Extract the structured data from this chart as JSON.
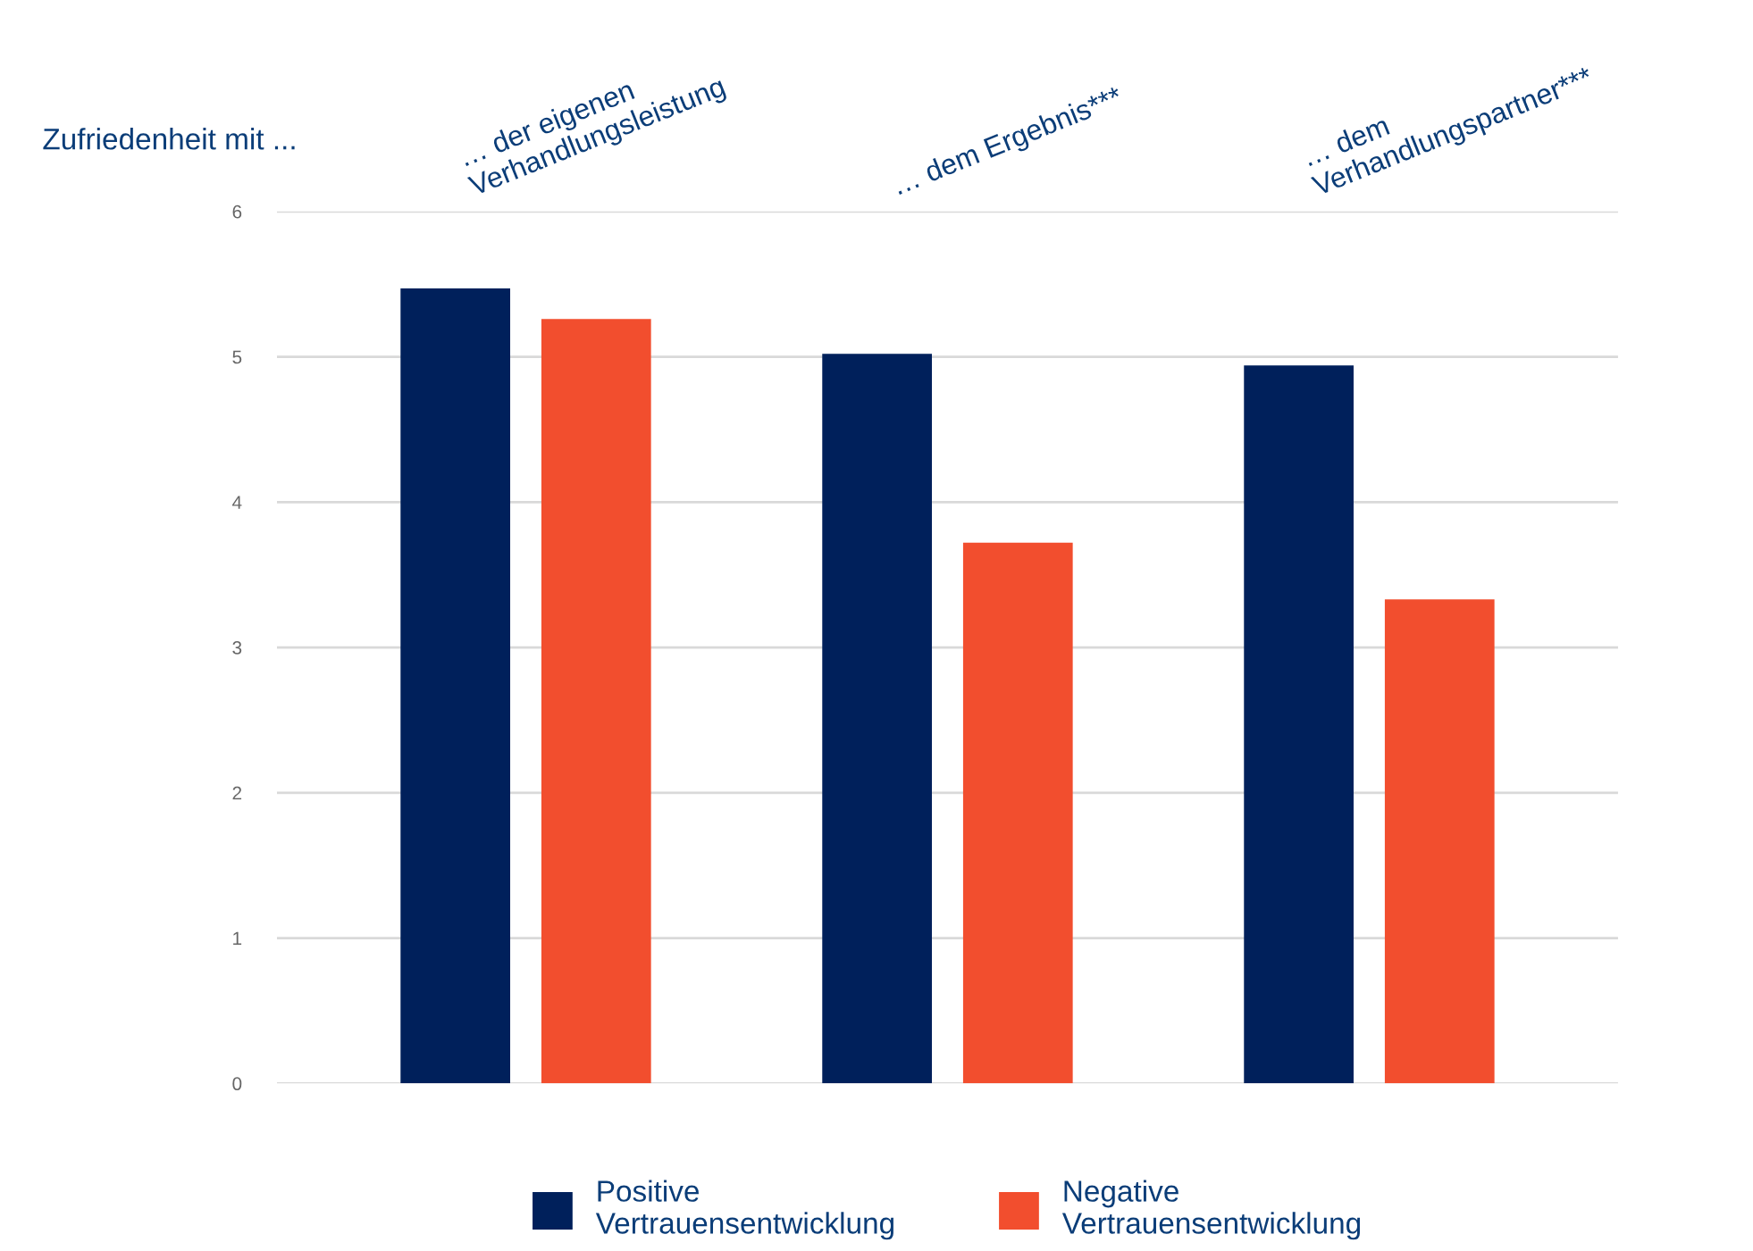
{
  "chart_data": {
    "type": "bar",
    "ylabel": "Zufriedenheit mit ...",
    "categories": [
      "… der eigenen\nVerhandlungsleistung",
      "… dem Ergebnis***",
      "… dem\nVerhandlungspartner***"
    ],
    "series": [
      {
        "name": "Positive\nVertrauensentwicklung",
        "color": "#00205b",
        "values": [
          5.47,
          5.02,
          4.94
        ]
      },
      {
        "name": "Negative\nVertrauensentwicklung",
        "color": "#f24e2e",
        "values": [
          5.26,
          3.72,
          3.33
        ]
      }
    ],
    "ylim": [
      0,
      6
    ],
    "yticks": [
      0,
      1,
      2,
      3,
      4,
      5,
      6
    ],
    "grid": "y",
    "legend": "bottom"
  }
}
